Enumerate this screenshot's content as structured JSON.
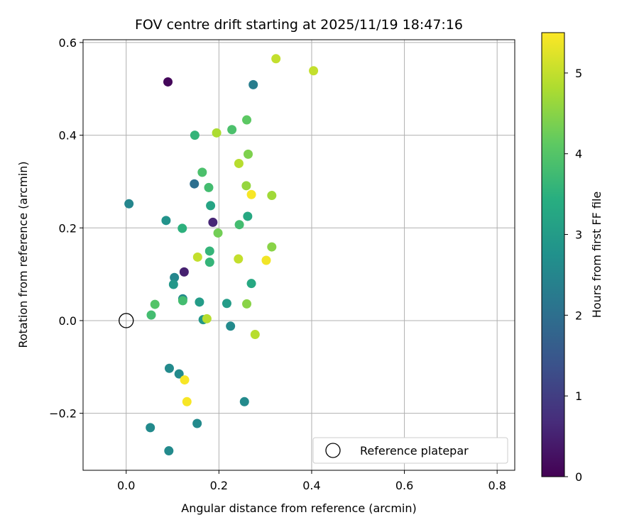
{
  "chart_data": {
    "type": "scatter",
    "title": "FOV centre drift starting at 2025/11/19 18:47:16",
    "xlabel": "Angular distance from reference (arcmin)",
    "ylabel": "Rotation from reference (arcmin)",
    "xlim": [
      -0.093,
      0.838
    ],
    "ylim": [
      -0.323,
      0.606
    ],
    "xticks": [
      0.0,
      0.2,
      0.4,
      0.6,
      0.8
    ],
    "xtick_labels": [
      "0.0",
      "0.2",
      "0.4",
      "0.6",
      "0.8"
    ],
    "yticks": [
      -0.2,
      0.0,
      0.2,
      0.4,
      0.6
    ],
    "ytick_labels": [
      "−0.2",
      "0.0",
      "0.2",
      "0.4",
      "0.6"
    ],
    "grid": true,
    "colorbar": {
      "label": "Hours from first FF file",
      "colormap": "viridis",
      "range": [
        0,
        5.5
      ],
      "ticks": [
        0,
        1,
        2,
        3,
        4,
        5
      ],
      "tick_labels": [
        "0",
        "1",
        "2",
        "3",
        "4",
        "5"
      ]
    },
    "legend": {
      "label": "Reference platepar",
      "position": "lower-right"
    },
    "reference_point": {
      "x": 0.0,
      "y": 0.0
    },
    "points": [
      {
        "x": 0.09,
        "y": 0.515,
        "h": 0.1
      },
      {
        "x": 0.125,
        "y": 0.105,
        "h": 0.5
      },
      {
        "x": 0.187,
        "y": 0.212,
        "h": 0.6
      },
      {
        "x": 0.147,
        "y": 0.295,
        "h": 2.0
      },
      {
        "x": 0.274,
        "y": 0.509,
        "h": 2.3
      },
      {
        "x": 0.006,
        "y": 0.252,
        "h": 2.5
      },
      {
        "x": 0.104,
        "y": 0.093,
        "h": 2.5
      },
      {
        "x": 0.122,
        "y": 0.047,
        "h": 2.6
      },
      {
        "x": 0.225,
        "y": -0.012,
        "h": 2.6
      },
      {
        "x": 0.052,
        "y": -0.231,
        "h": 2.6
      },
      {
        "x": 0.093,
        "y": -0.103,
        "h": 2.6
      },
      {
        "x": 0.114,
        "y": -0.115,
        "h": 2.6
      },
      {
        "x": 0.153,
        "y": -0.222,
        "h": 2.6
      },
      {
        "x": 0.092,
        "y": -0.281,
        "h": 2.6
      },
      {
        "x": 0.255,
        "y": -0.175,
        "h": 2.6
      },
      {
        "x": 0.086,
        "y": 0.216,
        "h": 2.8
      },
      {
        "x": 0.102,
        "y": 0.078,
        "h": 2.9
      },
      {
        "x": 0.166,
        "y": 0.002,
        "h": 2.9
      },
      {
        "x": 0.158,
        "y": 0.04,
        "h": 3.0
      },
      {
        "x": 0.217,
        "y": 0.037,
        "h": 3.0
      },
      {
        "x": 0.182,
        "y": 0.248,
        "h": 3.2
      },
      {
        "x": 0.262,
        "y": 0.225,
        "h": 3.3
      },
      {
        "x": 0.27,
        "y": 0.08,
        "h": 3.3
      },
      {
        "x": 0.121,
        "y": 0.199,
        "h": 3.5
      },
      {
        "x": 0.18,
        "y": 0.15,
        "h": 3.6
      },
      {
        "x": 0.18,
        "y": 0.126,
        "h": 3.6
      },
      {
        "x": 0.148,
        "y": 0.4,
        "h": 3.6
      },
      {
        "x": 0.122,
        "y": 0.043,
        "h": 3.8
      },
      {
        "x": 0.054,
        "y": 0.012,
        "h": 3.8
      },
      {
        "x": 0.244,
        "y": 0.207,
        "h": 3.8
      },
      {
        "x": 0.178,
        "y": 0.287,
        "h": 3.8
      },
      {
        "x": 0.164,
        "y": 0.32,
        "h": 3.9
      },
      {
        "x": 0.228,
        "y": 0.412,
        "h": 3.9
      },
      {
        "x": 0.062,
        "y": 0.035,
        "h": 4.0
      },
      {
        "x": 0.26,
        "y": 0.433,
        "h": 4.1
      },
      {
        "x": 0.198,
        "y": 0.189,
        "h": 4.3
      },
      {
        "x": 0.263,
        "y": 0.359,
        "h": 4.4
      },
      {
        "x": 0.26,
        "y": 0.036,
        "h": 4.5
      },
      {
        "x": 0.314,
        "y": 0.159,
        "h": 4.5
      },
      {
        "x": 0.259,
        "y": 0.291,
        "h": 4.6
      },
      {
        "x": 0.314,
        "y": 0.27,
        "h": 4.7
      },
      {
        "x": 0.195,
        "y": 0.405,
        "h": 4.8
      },
      {
        "x": 0.243,
        "y": 0.339,
        "h": 4.9
      },
      {
        "x": 0.278,
        "y": -0.03,
        "h": 4.9
      },
      {
        "x": 0.174,
        "y": 0.004,
        "h": 4.9
      },
      {
        "x": 0.154,
        "y": 0.137,
        "h": 5.0
      },
      {
        "x": 0.242,
        "y": 0.133,
        "h": 5.0
      },
      {
        "x": 0.323,
        "y": 0.565,
        "h": 5.0
      },
      {
        "x": 0.404,
        "y": 0.539,
        "h": 5.0
      },
      {
        "x": 0.302,
        "y": 0.13,
        "h": 5.4
      },
      {
        "x": 0.27,
        "y": 0.272,
        "h": 5.45
      },
      {
        "x": 0.126,
        "y": -0.128,
        "h": 5.45
      },
      {
        "x": 0.131,
        "y": -0.175,
        "h": 5.45
      }
    ]
  }
}
